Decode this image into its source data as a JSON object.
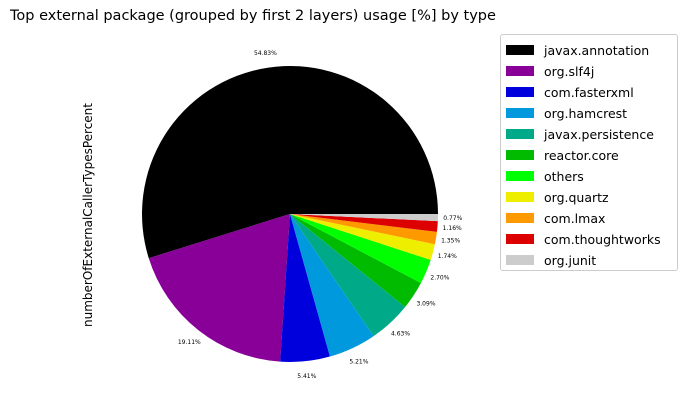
{
  "chart_data": {
    "type": "pie",
    "title": "Top external package (grouped by first 2 layers) usage [%] by type",
    "ylabel": "numberOfExternalCallerTypesPercent",
    "legend": "right",
    "slices": [
      {
        "label": "javax.annotation",
        "value": 54.83,
        "pct_label": "54.83%",
        "color": "#000000"
      },
      {
        "label": "org.slf4j",
        "value": 19.11,
        "pct_label": "19.11%",
        "color": "#880098"
      },
      {
        "label": "com.fasterxml",
        "value": 5.41,
        "pct_label": "5.41%",
        "color": "#0000dd"
      },
      {
        "label": "org.hamcrest",
        "value": 5.21,
        "pct_label": "5.21%",
        "color": "#0099dd"
      },
      {
        "label": "javax.persistence",
        "value": 4.63,
        "pct_label": "4.63%",
        "color": "#00aa88"
      },
      {
        "label": "reactor.core",
        "value": 3.09,
        "pct_label": "3.09%",
        "color": "#00bb00"
      },
      {
        "label": "others",
        "value": 2.7,
        "pct_label": "2.70%",
        "color": "#00ff00"
      },
      {
        "label": "org.quartz",
        "value": 1.74,
        "pct_label": "1.74%",
        "color": "#eeee00"
      },
      {
        "label": "com.lmax",
        "value": 1.35,
        "pct_label": "1.35%",
        "color": "#ff9900"
      },
      {
        "label": "com.thoughtworks",
        "value": 1.16,
        "pct_label": "1.16%",
        "color": "#dd0000"
      },
      {
        "label": "org.junit",
        "value": 0.77,
        "pct_label": "0.77%",
        "color": "#cccccc"
      }
    ]
  }
}
